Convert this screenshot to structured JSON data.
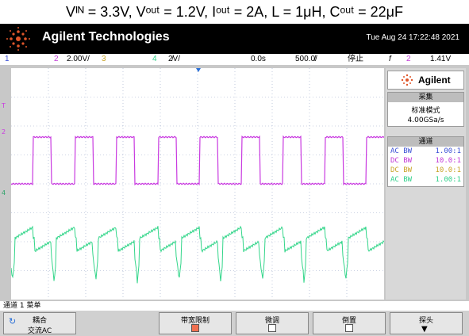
{
  "caption": "Vᴵᴺ = 3.3V, Vᵒᵘᵗ = 1.2V, Iᵒᵘᵗ = 2A, L = 1μH, Cᵒᵘᵗ = 22μF",
  "header": {
    "brand": "Agilent Technologies",
    "datetime": "Tue Aug 24 17:22:48 2021",
    "logo_icon": "agilent-spark-icon"
  },
  "status": {
    "ch1": "1",
    "ch2": "2",
    "ch2_scale": "2.00V/",
    "ch3": "3",
    "ch4": "4",
    "ch4_scale": "2̸V/",
    "time_offset": "0.0s",
    "time_scale": "500.0̸/",
    "run_state": "停止",
    "trigger_symbol": "f",
    "trigger_ch": "2",
    "trigger_level": "1.41V"
  },
  "side_panel": {
    "brand": "Agilent",
    "acq_header": "采集",
    "acq_mode": "标准模式",
    "acq_rate": "4.00GSa/s",
    "chan_header": "通道",
    "channels": [
      {
        "coupling": "AC BW",
        "probe": "1.00:1",
        "color": "#3a4fd6"
      },
      {
        "coupling": "DC BW",
        "probe": "10.0:1",
        "color": "#c23ad6"
      },
      {
        "coupling": "DC BW",
        "probe": "10.0:1",
        "color": "#c9a52a"
      },
      {
        "coupling": "AC BW",
        "probe": "1.00:1",
        "color": "#2fd08a"
      }
    ]
  },
  "markers": {
    "ch2": "2",
    "ch4": "4",
    "trig": "T"
  },
  "menu_title": "通道 1 菜单",
  "softkeys": [
    {
      "line1": "耦合",
      "line2": "交流AC"
    },
    {
      "line1": "带宽限制",
      "line2": ""
    },
    {
      "line1": "微调",
      "line2": ""
    },
    {
      "line1": "倒置",
      "line2": ""
    },
    {
      "line1": "探头",
      "line2": ""
    }
  ],
  "colors": {
    "ch2": "#c93ae0",
    "ch4": "#33d68a",
    "grid": "#9aa8c8"
  }
}
